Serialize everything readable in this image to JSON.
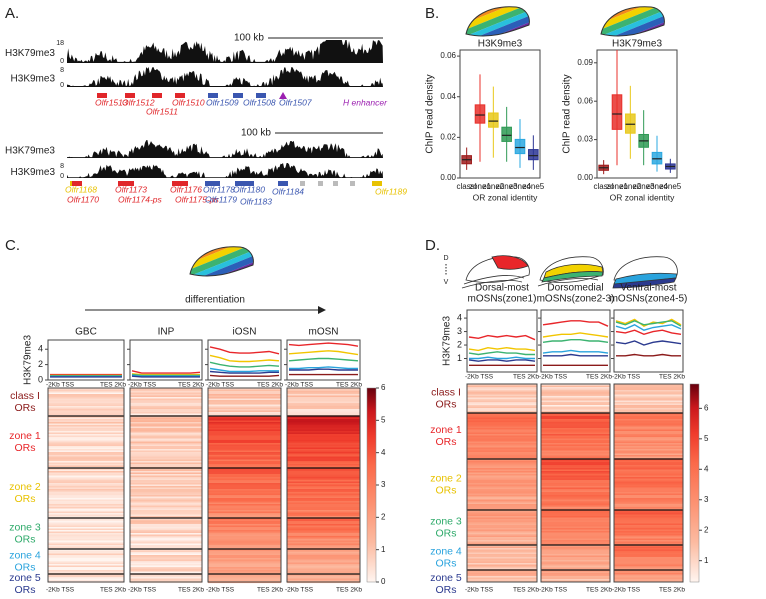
{
  "panel_labels": [
    "A.",
    "B.",
    "C.",
    "D."
  ],
  "annotations": {
    "differentiation": "differentiation",
    "dorsal": "D",
    "ventral": "V"
  },
  "genome": [
    {
      "scale_bar": "100 kb",
      "tracks": [
        {
          "name": "H3K79me3",
          "range": [
            0,
            18
          ]
        },
        {
          "name": "H3K9me3",
          "range": [
            0,
            8
          ]
        }
      ],
      "genes": [
        {
          "label": "Olfr1513",
          "color": "#e0262a"
        },
        {
          "label": "Olfr1512",
          "color": "#e0262a"
        },
        {
          "label": "Olfr1511",
          "color": "#e0262a"
        },
        {
          "label": "Olfr1510",
          "color": "#e0262a"
        },
        {
          "label": "Olfr1509",
          "color": "#3a56b0"
        },
        {
          "label": "Olfr1508",
          "color": "#3a56b0"
        },
        {
          "label": "Olfr1507",
          "color": "#3a56b0"
        },
        {
          "label": "H enhancer",
          "color": "#9b1fb0"
        }
      ]
    },
    {
      "scale_bar": "100 kb",
      "tracks": [
        {
          "name": "H3K79me3"
        },
        {
          "name": "H3K9me3",
          "range": [
            0,
            8
          ]
        }
      ],
      "genes": [
        {
          "label": "Olfr1168",
          "color": "#e8c200"
        },
        {
          "label": "Olfr1170",
          "color": "#e0262a"
        },
        {
          "label": "Olfr1173",
          "color": "#e0262a"
        },
        {
          "label": "Olfr1174-ps",
          "color": "#e0262a"
        },
        {
          "label": "Olfr1176",
          "color": "#e0262a"
        },
        {
          "label": "Olfr1175-ps",
          "color": "#e0262a"
        },
        {
          "label": "Olfr1178",
          "color": "#3a56b0"
        },
        {
          "label": "Olfr1179",
          "color": "#3a56b0"
        },
        {
          "label": "Olfr1180",
          "color": "#3a56b0"
        },
        {
          "label": "Olfr1183",
          "color": "#3a56b0"
        },
        {
          "label": "Olfr1184",
          "color": "#3a56b0"
        },
        {
          "label": "Olfr1189",
          "color": "#e8c200"
        }
      ]
    }
  ],
  "chart_data": [
    {
      "type": "box",
      "title": "H3K9me3",
      "ylabel": "ChIP read density",
      "xlabel": "OR zonal identity",
      "categories": [
        "classI",
        "zone1",
        "zone2",
        "zone3",
        "zone4",
        "zone5"
      ],
      "colors": [
        "#9e1b1b",
        "#e8302b",
        "#e8c81a",
        "#2f9a55",
        "#2ba8e0",
        "#2c3594"
      ],
      "min": [
        0.004,
        0.008,
        0.01,
        0.008,
        0.005,
        0.004
      ],
      "q1": [
        0.007,
        0.027,
        0.025,
        0.018,
        0.012,
        0.009
      ],
      "median": [
        0.009,
        0.031,
        0.028,
        0.021,
        0.015,
        0.011
      ],
      "q3": [
        0.011,
        0.036,
        0.032,
        0.025,
        0.019,
        0.014
      ],
      "max": [
        0.015,
        0.051,
        0.045,
        0.035,
        0.029,
        0.021
      ],
      "ylim": [
        0,
        0.063
      ],
      "yticks": [
        {
          "value": 0,
          "label": "0.00"
        },
        {
          "value": 0.02,
          "label": "0.02"
        },
        {
          "value": 0.04,
          "label": "0.04"
        },
        {
          "value": 0.06,
          "label": "0.06"
        }
      ]
    },
    {
      "type": "box",
      "title": "H3K79me3",
      "ylabel": "ChIP read density",
      "xlabel": "OR zonal identity",
      "categories": [
        "classI",
        "zone1",
        "zone2",
        "zone3",
        "zone4",
        "zone5"
      ],
      "colors": [
        "#9e1b1b",
        "#e8302b",
        "#e8c81a",
        "#2f9a55",
        "#2ba8e0",
        "#2c3594"
      ],
      "min": [
        0.003,
        0.01,
        0.015,
        0.01,
        0.005,
        0.004
      ],
      "q1": [
        0.006,
        0.038,
        0.035,
        0.024,
        0.011,
        0.007
      ],
      "median": [
        0.008,
        0.05,
        0.042,
        0.029,
        0.015,
        0.009
      ],
      "q3": [
        0.01,
        0.065,
        0.05,
        0.034,
        0.02,
        0.011
      ],
      "max": [
        0.014,
        0.1,
        0.072,
        0.053,
        0.033,
        0.015
      ],
      "ylim": [
        0,
        0.1
      ],
      "yticks": [
        {
          "value": 0,
          "label": "0.00"
        },
        {
          "value": 0.03,
          "label": "0.03"
        },
        {
          "value": 0.06,
          "label": "0.06"
        },
        {
          "value": 0.09,
          "label": "0.09"
        }
      ]
    },
    {
      "type": "line",
      "title": "GBC",
      "ylabel": "H3K79me3",
      "x_labels": [
        "-2Kb TSS",
        "TES 2Kb"
      ],
      "ylim": [
        0,
        5.2
      ],
      "yticks": [
        0,
        2,
        4
      ],
      "series": [
        {
          "color": "#8b1a1a",
          "values": [
            0.5,
            0.5,
            0.5,
            0.5,
            0.5,
            0.5,
            0.5,
            0.5
          ]
        },
        {
          "color": "#e8262a",
          "values": [
            0.7,
            0.7,
            0.7,
            0.7,
            0.7,
            0.7,
            0.7,
            0.7
          ]
        },
        {
          "color": "#f2c500",
          "values": [
            0.6,
            0.6,
            0.6,
            0.6,
            0.6,
            0.6,
            0.6,
            0.6
          ]
        },
        {
          "color": "#3cb371",
          "values": [
            0.55,
            0.55,
            0.55,
            0.55,
            0.55,
            0.55,
            0.55,
            0.55
          ]
        },
        {
          "color": "#29a3dd",
          "values": [
            0.45,
            0.45,
            0.45,
            0.45,
            0.45,
            0.45,
            0.45,
            0.45
          ]
        },
        {
          "color": "#2b3a8f",
          "values": [
            0.4,
            0.4,
            0.4,
            0.4,
            0.4,
            0.4,
            0.4,
            0.4
          ]
        }
      ]
    },
    {
      "type": "line",
      "title": "INP",
      "x_labels": [
        "-2Kb TSS",
        "TES 2Kb"
      ],
      "ylim": [
        0,
        5.2
      ],
      "series": [
        {
          "color": "#8b1a1a",
          "values": [
            0.6,
            0.5,
            0.5,
            0.5,
            0.5,
            0.5,
            0.5,
            0.6
          ]
        },
        {
          "color": "#e8262a",
          "values": [
            1.2,
            0.9,
            0.9,
            0.9,
            0.9,
            0.9,
            0.9,
            1.0
          ]
        },
        {
          "color": "#f2c500",
          "values": [
            0.8,
            0.7,
            0.7,
            0.7,
            0.7,
            0.7,
            0.7,
            0.7
          ]
        },
        {
          "color": "#3cb371",
          "values": [
            0.7,
            0.6,
            0.6,
            0.6,
            0.6,
            0.6,
            0.6,
            0.6
          ]
        },
        {
          "color": "#29a3dd",
          "values": [
            0.6,
            0.5,
            0.5,
            0.5,
            0.5,
            0.5,
            0.5,
            0.5
          ]
        },
        {
          "color": "#2b3a8f",
          "values": [
            0.5,
            0.4,
            0.4,
            0.4,
            0.4,
            0.4,
            0.4,
            0.4
          ]
        }
      ]
    },
    {
      "type": "line",
      "title": "iOSN",
      "x_labels": [
        "-2Kb TSS",
        "TES 2Kb"
      ],
      "ylim": [
        0,
        5.2
      ],
      "series": [
        {
          "color": "#8b1a1a",
          "values": [
            0.6,
            0.5,
            0.5,
            0.5,
            0.5,
            0.5,
            0.5,
            0.6
          ]
        },
        {
          "color": "#e8262a",
          "values": [
            4.3,
            4.0,
            3.6,
            3.5,
            3.5,
            3.6,
            3.7,
            3.4
          ]
        },
        {
          "color": "#f2c500",
          "values": [
            3.2,
            2.9,
            2.5,
            2.4,
            2.4,
            2.5,
            2.6,
            2.5
          ]
        },
        {
          "color": "#3cb371",
          "values": [
            2.3,
            2.0,
            1.8,
            1.7,
            1.7,
            1.8,
            1.9,
            1.8
          ]
        },
        {
          "color": "#29a3dd",
          "values": [
            1.5,
            1.3,
            1.1,
            1.1,
            1.1,
            1.2,
            1.2,
            1.2
          ]
        },
        {
          "color": "#2b3a8f",
          "values": [
            1.1,
            1.0,
            0.9,
            0.9,
            0.9,
            0.9,
            1.0,
            1.0
          ]
        }
      ]
    },
    {
      "type": "line",
      "title": "mOSN",
      "x_labels": [
        "-2Kb TSS",
        "TES 2Kb"
      ],
      "ylim": [
        0,
        5.2
      ],
      "series": [
        {
          "color": "#8b1a1a",
          "values": [
            0.7,
            0.7,
            0.7,
            0.7,
            0.7,
            0.7,
            0.7,
            0.7
          ]
        },
        {
          "color": "#e8262a",
          "values": [
            4.6,
            4.5,
            4.6,
            4.7,
            4.8,
            4.7,
            4.6,
            4.4
          ]
        },
        {
          "color": "#f2c500",
          "values": [
            3.4,
            3.5,
            3.6,
            3.7,
            3.8,
            3.7,
            3.5,
            3.3
          ]
        },
        {
          "color": "#3cb371",
          "values": [
            2.5,
            2.6,
            2.7,
            2.8,
            2.8,
            2.7,
            2.6,
            2.5
          ]
        },
        {
          "color": "#29a3dd",
          "values": [
            1.5,
            1.5,
            1.6,
            1.6,
            1.7,
            1.6,
            1.5,
            1.5
          ]
        },
        {
          "color": "#2b3a8f",
          "values": [
            1.3,
            1.3,
            1.3,
            1.4,
            1.4,
            1.3,
            1.3,
            1.3
          ]
        }
      ]
    },
    {
      "type": "line",
      "title": [
        "Dorsal-most",
        "mOSNs(zone1)"
      ],
      "ylabel": "H3K79me3",
      "x_labels": [
        "-2Kb TSS",
        "TES 2Kb"
      ],
      "ylim": [
        0,
        4.6
      ],
      "yticks": [
        1,
        2,
        3,
        4
      ],
      "series": [
        {
          "color": "#8b1a1a",
          "values": [
            0.5,
            0.5,
            0.5,
            0.5,
            0.5,
            0.5,
            0.5,
            0.5
          ]
        },
        {
          "color": "#e8262a",
          "values": [
            2.6,
            2.5,
            2.7,
            2.6,
            2.7,
            2.6,
            2.7,
            2.4
          ]
        },
        {
          "color": "#f2c500",
          "values": [
            1.7,
            1.6,
            1.8,
            1.7,
            1.8,
            1.7,
            1.7,
            1.6
          ]
        },
        {
          "color": "#3cb371",
          "values": [
            1.4,
            1.3,
            1.4,
            1.5,
            1.4,
            1.4,
            1.3,
            1.3
          ]
        },
        {
          "color": "#29a3dd",
          "values": [
            1.0,
            1.0,
            1.1,
            1.0,
            1.0,
            1.1,
            1.0,
            1.0
          ]
        },
        {
          "color": "#2b3a8f",
          "values": [
            0.9,
            0.8,
            0.9,
            0.9,
            0.8,
            0.9,
            0.9,
            0.8
          ]
        }
      ]
    },
    {
      "type": "line",
      "title": [
        "Dorsomedial",
        "mOSNs(zone2-3)"
      ],
      "x_labels": [
        "-2Kb TSS",
        "TES 2Kb"
      ],
      "ylim": [
        0,
        4.6
      ],
      "series": [
        {
          "color": "#8b1a1a",
          "values": [
            0.5,
            0.5,
            0.5,
            0.5,
            0.5,
            0.5,
            0.5,
            0.5
          ]
        },
        {
          "color": "#e8262a",
          "values": [
            3.5,
            3.6,
            3.7,
            3.8,
            3.8,
            3.7,
            3.7,
            3.4
          ]
        },
        {
          "color": "#f2c500",
          "values": [
            2.6,
            2.7,
            2.8,
            2.8,
            2.9,
            2.8,
            2.7,
            2.6
          ]
        },
        {
          "color": "#3cb371",
          "values": [
            2.2,
            2.3,
            2.3,
            2.4,
            2.4,
            2.3,
            2.3,
            2.2
          ]
        },
        {
          "color": "#29a3dd",
          "values": [
            1.4,
            1.5,
            1.5,
            1.6,
            1.5,
            1.5,
            1.5,
            1.4
          ]
        },
        {
          "color": "#2b3a8f",
          "values": [
            1.2,
            1.2,
            1.2,
            1.3,
            1.2,
            1.2,
            1.2,
            1.2
          ]
        }
      ]
    },
    {
      "type": "line",
      "title": [
        "Ventral-most",
        "mOSNs(zone4-5)"
      ],
      "x_labels": [
        "-2Kb TSS",
        "TES 2Kb"
      ],
      "ylim": [
        0,
        4.6
      ],
      "series": [
        {
          "color": "#8b1a1a",
          "values": [
            1.2,
            1.2,
            1.3,
            1.2,
            1.2,
            1.3,
            1.2,
            1.2
          ]
        },
        {
          "color": "#e8262a",
          "values": [
            3.0,
            2.9,
            3.1,
            2.8,
            3.0,
            3.1,
            2.9,
            2.8
          ]
        },
        {
          "color": "#f2c500",
          "values": [
            3.8,
            3.6,
            3.9,
            3.4,
            3.7,
            3.6,
            3.9,
            3.5
          ]
        },
        {
          "color": "#3cb371",
          "values": [
            3.7,
            3.5,
            3.8,
            3.5,
            3.6,
            3.7,
            3.8,
            3.4
          ]
        },
        {
          "color": "#29a3dd",
          "values": [
            3.4,
            3.2,
            3.5,
            3.1,
            3.3,
            3.4,
            3.5,
            3.2
          ]
        },
        {
          "color": "#2b3a8f",
          "values": [
            2.2,
            2.1,
            2.3,
            2.0,
            2.2,
            2.3,
            2.2,
            2.1
          ]
        }
      ]
    },
    {
      "type": "heatmap",
      "x_labels": [
        "-2Kb TSS",
        "TES 2Kb"
      ],
      "groups": [
        {
          "label": [
            "class I",
            "ORs"
          ],
          "color": "#8b1a1a"
        },
        {
          "label": [
            "zone 1",
            "ORs"
          ],
          "color": "#e8262a"
        },
        {
          "label": [
            "zone 2",
            "ORs"
          ],
          "color": "#e8c200"
        },
        {
          "label": [
            "zone 3",
            "ORs"
          ],
          "color": "#2eaa6a"
        },
        {
          "label": [
            "zone 4",
            "ORs"
          ],
          "color": "#29a3dd"
        },
        {
          "label": [
            "zone 5",
            "ORs"
          ],
          "color": "#2b3a8f"
        }
      ],
      "clim": [
        0,
        6
      ],
      "cticks": [
        0,
        1,
        2,
        3,
        4,
        5,
        6
      ]
    },
    {
      "type": "heatmap",
      "x_labels": [
        "-2Kb TSS",
        "TES 2Kb"
      ],
      "groups": [
        {
          "label": [
            "class I",
            "ORs"
          ],
          "color": "#8b1a1a"
        },
        {
          "label": [
            "zone 1",
            "ORs"
          ],
          "color": "#e8262a"
        },
        {
          "label": [
            "zone 2",
            "ORs"
          ],
          "color": "#e8c200"
        },
        {
          "label": [
            "zone 3",
            "ORs"
          ],
          "color": "#2eaa6a"
        },
        {
          "label": [
            "zone 4",
            "ORs"
          ],
          "color": "#29a3dd"
        },
        {
          "label": [
            "zone 5",
            "ORs"
          ],
          "color": "#2b3a8f"
        }
      ],
      "clim": [
        0.3,
        6.8
      ],
      "cticks": [
        1,
        2,
        3,
        4,
        5,
        6
      ]
    }
  ]
}
